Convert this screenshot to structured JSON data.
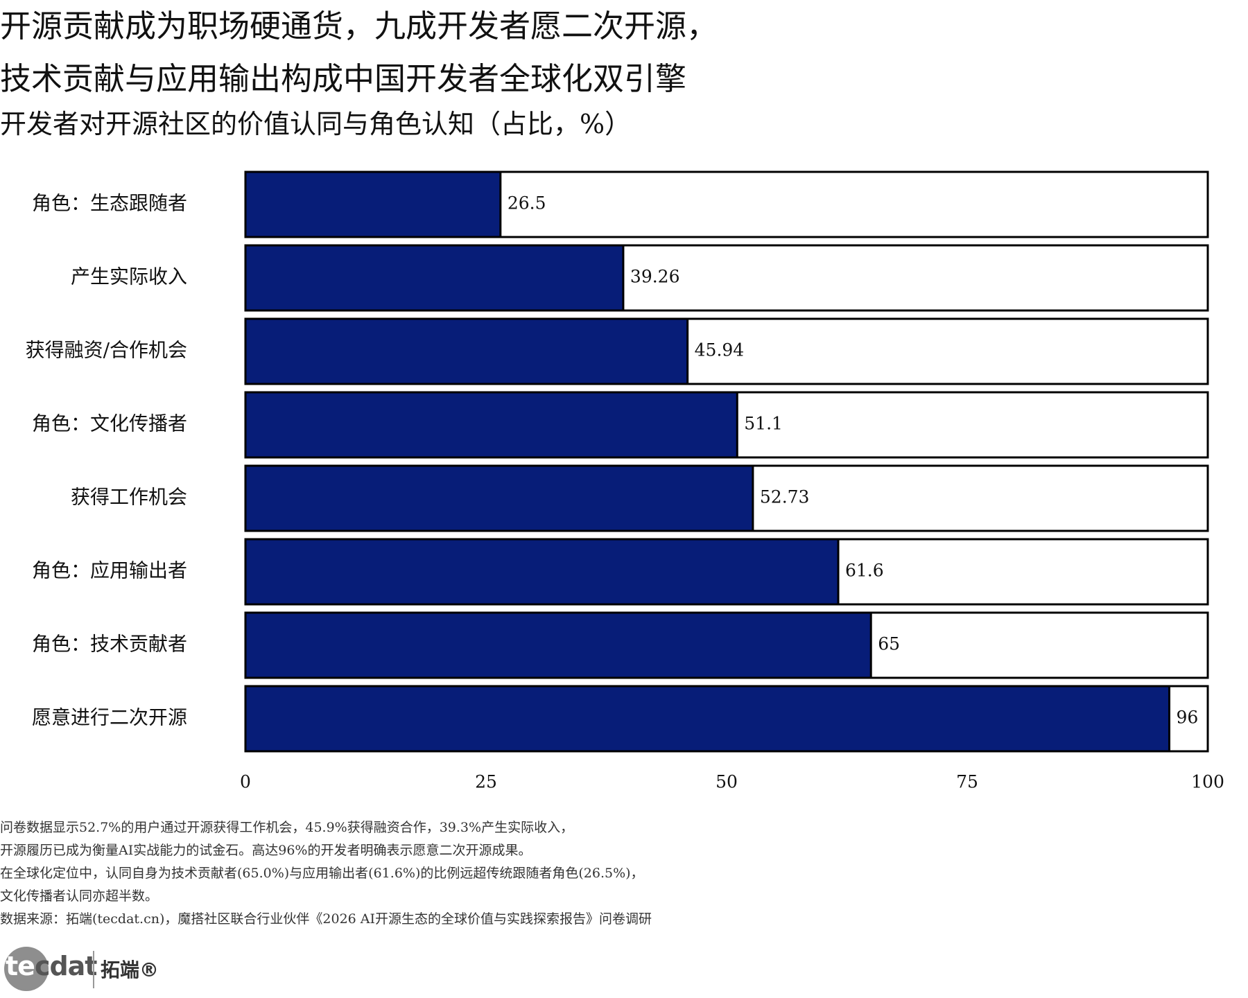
{
  "title_line1": "开源贡献成为职场硬通货，九成开发者愿二次开源，",
  "title_line2": "技术贡献与应用输出构成中国开发者全球化双引擎",
  "subtitle": "开发者对开源社区的价值认同与角色认知（占比，%）",
  "chart_data": {
    "type": "bar",
    "orientation": "horizontal",
    "categories": [
      "角色：生态跟随者",
      "产生实际收入",
      "获得融资/合作机会",
      "角色：文化传播者",
      "获得工作机会",
      "角色：应用输出者",
      "角色：技术贡献者",
      "愿意进行二次开源"
    ],
    "values": [
      26.5,
      39.26,
      45.94,
      51.1,
      52.73,
      61.6,
      65,
      96
    ],
    "value_labels": [
      "26.5",
      "39.26",
      "45.94",
      "51.1",
      "52.73",
      "61.6",
      "65",
      "96"
    ],
    "xlim": [
      0,
      100
    ],
    "xticks": [
      "0",
      "25",
      "50",
      "75",
      "100"
    ],
    "bar_color": "#071d78",
    "background_bar_color": "#ffffff",
    "grid": false,
    "legend": "none"
  },
  "notes": [
    "问卷数据显示52.7%的用户通过开源获得工作机会，45.9%获得融资合作，39.3%产生实际收入，",
    "开源履历已成为衡量AI实战能力的试金石。高达96%的开发者明确表示愿意二次开源成果。",
    "在全球化定位中，认同自身为技术贡献者(65.0%)与应用输出者(61.6%)的比例远超传统跟随者角色(26.5%)，",
    "文化传播者认同亦超半数。",
    "数据来源：拓端(tecdat.cn)，魔搭社区联合行业伙伴《2026 AI开源生态的全球价值与实践探索报告》问卷调研"
  ],
  "logo": {
    "text_part1": "te",
    "text_part2": "cdat",
    "cn": "拓端®"
  }
}
